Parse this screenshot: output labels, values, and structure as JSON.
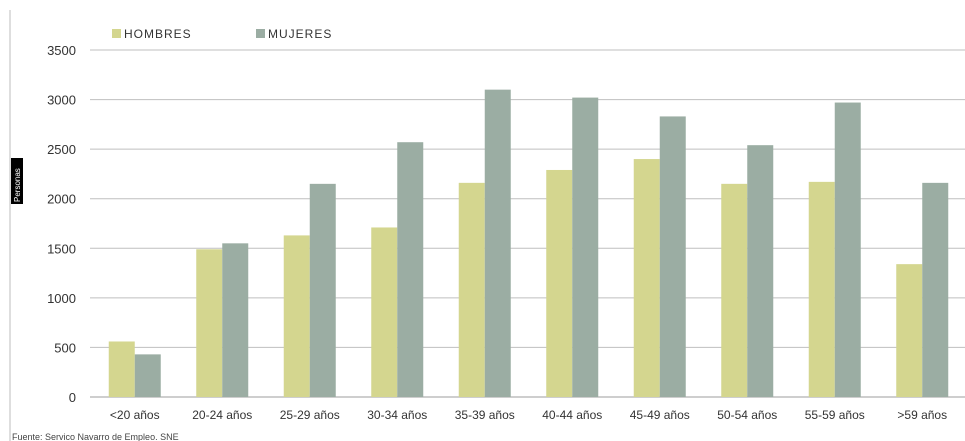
{
  "chart_data": {
    "type": "bar",
    "categories": [
      "<20 años",
      "20-24 años",
      "25-29 años",
      "30-34 años",
      "35-39 años",
      "40-44 años",
      "45-49 años",
      "50-54 años",
      "55-59 años",
      ">59 años"
    ],
    "series": [
      {
        "name": "HOMBRES",
        "color": "#d4d68f",
        "values": [
          560,
          1490,
          1630,
          1710,
          2160,
          2290,
          2400,
          2150,
          2170,
          1340
        ]
      },
      {
        "name": "MUJERES",
        "color": "#9bada3",
        "values": [
          430,
          1550,
          2150,
          2570,
          3100,
          3020,
          2830,
          2540,
          2970,
          2160
        ]
      }
    ],
    "ylabel": "Personas",
    "ylim": [
      0,
      3500
    ],
    "yticks": [
      0,
      500,
      1000,
      1500,
      2000,
      2500,
      3000,
      3500
    ],
    "grid": true,
    "legend": "top-left",
    "source": "Fuente: Servico Navarro de Empleo. SNE"
  }
}
